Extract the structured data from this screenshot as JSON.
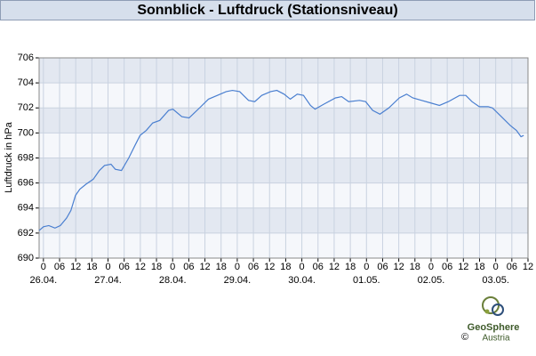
{
  "chart_data": {
    "type": "line",
    "title": "Sonnblick - Luftdruck (Stationsniveau)",
    "ylabel": "Luftdruck in hPa",
    "x": [
      -1.6,
      0,
      2.0,
      4.3,
      6.3,
      8.6,
      10.2,
      11.9,
      13.5,
      15.8,
      18.5,
      20.8,
      22.7,
      25.1,
      26.7,
      29.0,
      31.7,
      34.0,
      35.9,
      38.2,
      40.6,
      43.2,
      46.5,
      48.1,
      51.4,
      54.1,
      58.0,
      61.3,
      64.6,
      67.9,
      70.2,
      72.9,
      76.2,
      78.5,
      81.1,
      84.4,
      86.7,
      89.4,
      91.7,
      94.3,
      96.6,
      99.2,
      100.9,
      104.2,
      108.5,
      110.8,
      113.4,
      117.4,
      119.7,
      122.3,
      125.0,
      128.3,
      132.2,
      134.9,
      137.2,
      140.5,
      143.8,
      147.1,
      150.4,
      154.6,
      156.9,
      159.2,
      161.9,
      165.2,
      166.8,
      170.1,
      173.4,
      175.7,
      177.4,
      178.4
    ],
    "values": [
      692.2,
      692.5,
      692.6,
      692.4,
      692.6,
      693.2,
      693.8,
      695.0,
      695.5,
      695.9,
      696.3,
      697.0,
      697.4,
      697.5,
      697.1,
      697.0,
      698.0,
      699.0,
      699.8,
      700.2,
      700.8,
      701.0,
      701.8,
      701.9,
      701.3,
      701.2,
      702.0,
      702.7,
      703.0,
      703.3,
      703.4,
      703.3,
      702.6,
      702.5,
      703.0,
      703.3,
      703.4,
      703.1,
      702.7,
      703.1,
      703.0,
      702.2,
      701.9,
      702.3,
      702.8,
      702.9,
      702.5,
      702.6,
      702.5,
      701.8,
      701.5,
      702.0,
      702.8,
      703.1,
      702.8,
      702.6,
      702.4,
      702.2,
      702.5,
      703.0,
      703.0,
      702.5,
      702.1,
      702.1,
      702.0,
      701.3,
      700.6,
      700.2,
      699.7,
      699.8
    ],
    "color": "#4a7fd0",
    "xlim": [
      -1.6,
      180
    ],
    "xticks": [
      0,
      {
        "value": 6,
        "label": "06"
      },
      12,
      18,
      {
        "value": 24,
        "label": "0"
      },
      {
        "value": 30,
        "label": "06"
      },
      {
        "value": 36,
        "label": "12"
      },
      {
        "value": 42,
        "label": "18"
      },
      {
        "value": 48,
        "label": "0"
      },
      {
        "value": 54,
        "label": "06"
      },
      {
        "value": 60,
        "label": "12"
      },
      {
        "value": 66,
        "label": "18"
      },
      {
        "value": 72,
        "label": "0"
      },
      {
        "value": 78,
        "label": "06"
      },
      {
        "value": 84,
        "label": "12"
      },
      {
        "value": 90,
        "label": "18"
      },
      {
        "value": 96,
        "label": "0"
      },
      {
        "value": 102,
        "label": "06"
      },
      {
        "value": 108,
        "label": "12"
      },
      {
        "value": 114,
        "label": "18"
      },
      {
        "value": 120,
        "label": "0"
      },
      {
        "value": 126,
        "label": "06"
      },
      {
        "value": 132,
        "label": "12"
      },
      {
        "value": 138,
        "label": "18"
      },
      {
        "value": 144,
        "label": "0"
      },
      {
        "value": 150,
        "label": "06"
      },
      {
        "value": 156,
        "label": "12"
      },
      {
        "value": 162,
        "label": "18"
      },
      {
        "value": 168,
        "label": "0"
      },
      {
        "value": 174,
        "label": "06"
      },
      {
        "value": 180,
        "label": "12"
      }
    ],
    "day_labels": [
      {
        "value": 0,
        "label": "26.04."
      },
      {
        "value": 24,
        "label": "27.04."
      },
      {
        "value": 48,
        "label": "28.04."
      },
      {
        "value": 72,
        "label": "29.04."
      },
      {
        "value": 96,
        "label": "30.04."
      },
      {
        "value": 120,
        "label": "01.05."
      },
      {
        "value": 144,
        "label": "02.05."
      },
      {
        "value": 168,
        "label": "03.05."
      }
    ],
    "ylim": [
      690,
      706
    ],
    "yticks": [
      690,
      692,
      694,
      696,
      698,
      700,
      702,
      704,
      706
    ],
    "grid": true
  },
  "logo": {
    "name": "GeoSphere",
    "sub": "Austria",
    "copyright": "©"
  }
}
